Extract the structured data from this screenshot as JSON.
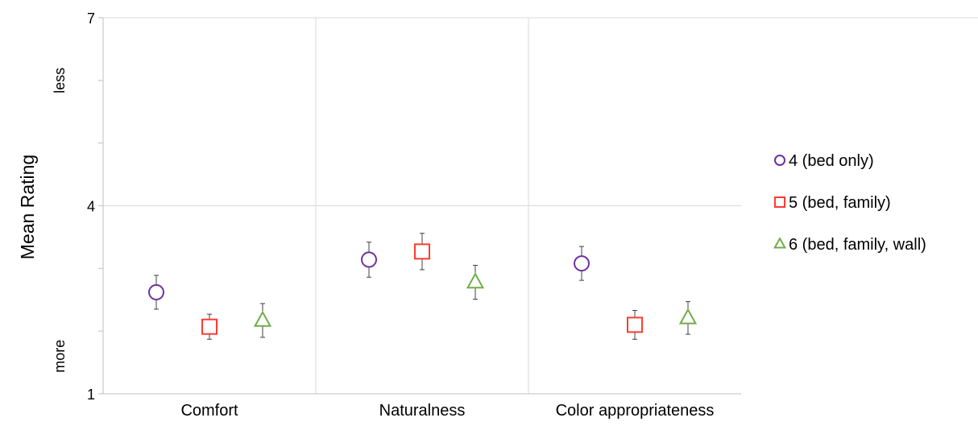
{
  "chart_data": {
    "type": "scatter",
    "title": "",
    "xlabel": "",
    "ylabel": "Mean Rating",
    "ylim": [
      1,
      7
    ],
    "yticks": [
      {
        "value": 1,
        "label": "1"
      },
      {
        "value": 4,
        "label": "4"
      },
      {
        "value": 7,
        "label": "7"
      }
    ],
    "minor_yticks": [
      2,
      3,
      5,
      6
    ],
    "y_descriptors": [
      {
        "value": 6,
        "label": "less"
      },
      {
        "value": 1.6,
        "label": "more"
      }
    ],
    "categories": [
      "Comfort",
      "Naturalness",
      "Color appropriateness"
    ],
    "grid": true,
    "legend_position": "right",
    "series": [
      {
        "name": "4 (bed only)",
        "marker": "circle",
        "color": "#7030a0",
        "values": [
          2.62,
          3.14,
          3.08
        ],
        "error": [
          0.27,
          0.28,
          0.27
        ]
      },
      {
        "name": "5 (bed, family)",
        "marker": "square",
        "color": "#ff3b2f",
        "values": [
          2.07,
          3.27,
          2.1
        ],
        "error": [
          0.2,
          0.29,
          0.23
        ]
      },
      {
        "name": "6 (bed, family, wall)",
        "marker": "triangle",
        "color": "#70ad47",
        "values": [
          2.17,
          2.78,
          2.21
        ],
        "error": [
          0.27,
          0.27,
          0.26
        ]
      }
    ]
  }
}
